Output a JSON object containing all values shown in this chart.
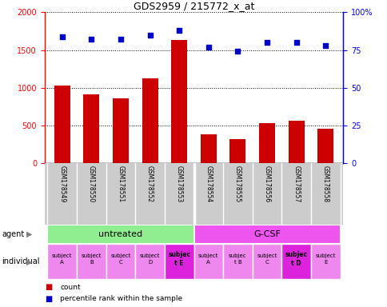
{
  "title": "GDS2959 / 215772_x_at",
  "samples": [
    "GSM178549",
    "GSM178550",
    "GSM178551",
    "GSM178552",
    "GSM178553",
    "GSM178554",
    "GSM178555",
    "GSM178556",
    "GSM178557",
    "GSM178558"
  ],
  "counts": [
    1030,
    910,
    860,
    1120,
    1630,
    380,
    320,
    530,
    560,
    460
  ],
  "percentile_ranks": [
    84,
    82,
    82,
    85,
    88,
    77,
    74,
    80,
    80,
    78
  ],
  "ylim_left": [
    0,
    2000
  ],
  "ylim_right": [
    0,
    100
  ],
  "yticks_left": [
    0,
    500,
    1000,
    1500,
    2000
  ],
  "yticks_right": [
    0,
    25,
    50,
    75,
    100
  ],
  "bar_color": "#cc0000",
  "dot_color": "#0000cc",
  "agent_groups": [
    {
      "label": "untreated",
      "start": 0,
      "end": 5,
      "color": "#90ee90"
    },
    {
      "label": "G-CSF",
      "start": 5,
      "end": 10,
      "color": "#ee55ee"
    }
  ],
  "indiv_labels": [
    "subject\nA",
    "subject\nB",
    "subject\nC",
    "subject\nD",
    "subjec\nt E",
    "subject\nA",
    "subjec\nt B",
    "subject\nC",
    "subjec\nt D",
    "subject\nE"
  ],
  "indiv_bold": [
    false,
    false,
    false,
    false,
    true,
    false,
    false,
    false,
    true,
    false
  ],
  "indiv_colors": [
    "#ee88ee",
    "#ee88ee",
    "#ee88ee",
    "#ee88ee",
    "#dd22dd",
    "#ee88ee",
    "#ee88ee",
    "#ee88ee",
    "#dd22dd",
    "#ee88ee"
  ],
  "tick_area_color": "#cccccc",
  "grid_color": "black"
}
